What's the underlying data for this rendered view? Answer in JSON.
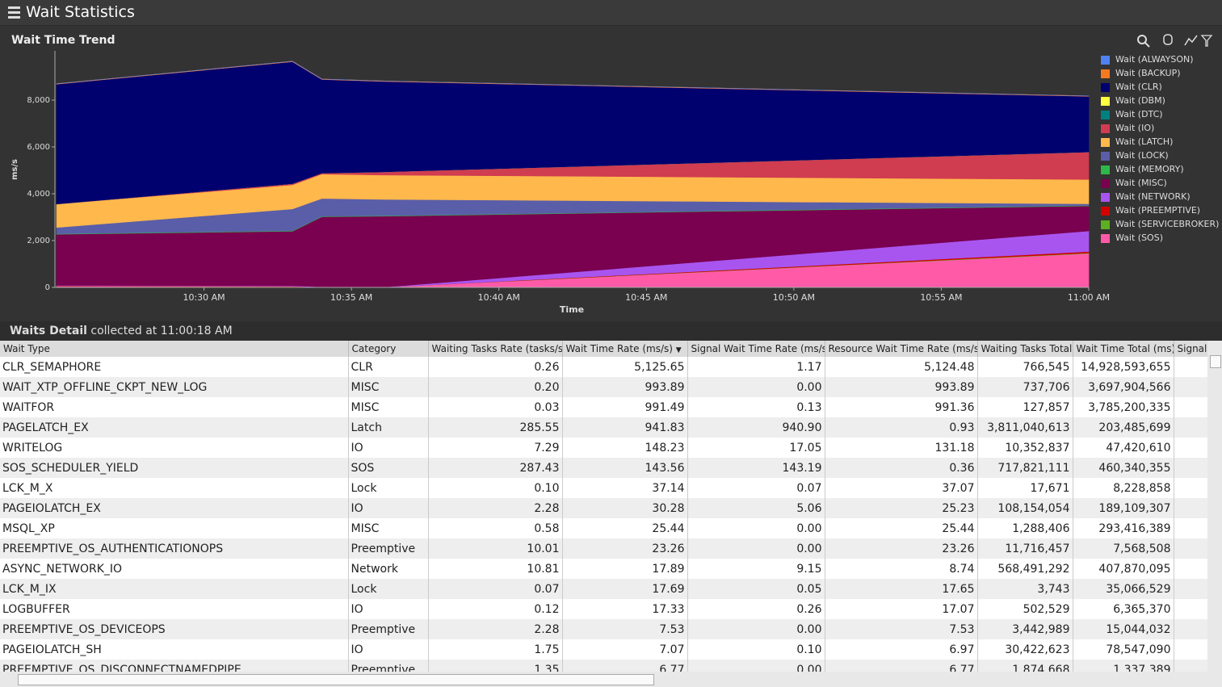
{
  "header": {
    "title": "Wait Statistics"
  },
  "chart_data": {
    "type": "stacked-area",
    "title": "Wait Time Trend",
    "x_label": "Time",
    "y_label": "ms/s",
    "x": [
      "10:25 AM",
      "10:33 AM",
      "10:34 AM",
      "10:36 AM",
      "11:00 AM"
    ],
    "xlim": [
      "10:25 AM",
      "11:00 AM"
    ],
    "xticks": [
      "10:30 AM",
      "10:35 AM",
      "10:40 AM",
      "10:45 AM",
      "10:50 AM",
      "10:55 AM",
      "11:00 AM"
    ],
    "ylim": [
      0,
      10000
    ],
    "yticks": [
      0,
      {
        "value": 2000,
        "label": "2,000"
      },
      {
        "value": 4000,
        "label": "4,000"
      },
      {
        "value": 6000,
        "label": "6,000"
      },
      {
        "value": 8000,
        "label": "8,000"
      }
    ],
    "legend": "right",
    "series": [
      {
        "name": "Wait (ALWAYSON)",
        "color": "#4f81f0",
        "values": [
          0,
          0,
          0,
          0,
          0
        ]
      },
      {
        "name": "Wait (BACKUP)",
        "color": "#f47a20",
        "values": [
          20,
          20,
          20,
          20,
          20
        ]
      },
      {
        "name": "Wait (CLR)",
        "color": "#00006e",
        "values": [
          5120,
          5210,
          4000,
          3870,
          2380
        ]
      },
      {
        "name": "Wait (DBM)",
        "color": "#ffff40",
        "values": [
          0,
          0,
          0,
          0,
          0
        ]
      },
      {
        "name": "Wait (DTC)",
        "color": "#008080",
        "values": [
          0,
          0,
          0,
          0,
          0
        ]
      },
      {
        "name": "Wait (IO)",
        "color": "#d03c50",
        "values": [
          0,
          50,
          40,
          130,
          1170
        ]
      },
      {
        "name": "Wait (LATCH)",
        "color": "#ffb84c",
        "values": [
          1000,
          1030,
          1040,
          1040,
          1040
        ]
      },
      {
        "name": "Wait (LOCK)",
        "color": "#5a5ea8",
        "values": [
          270,
          930,
          760,
          700,
          70
        ]
      },
      {
        "name": "Wait (MEMORY)",
        "color": "#2fb84a",
        "values": [
          20,
          20,
          20,
          20,
          20
        ]
      },
      {
        "name": "Wait (MISC)",
        "color": "#7a0050",
        "values": [
          2180,
          2330,
          3000,
          3040,
          1070
        ]
      },
      {
        "name": "Wait (NETWORK)",
        "color": "#a855f0",
        "values": [
          20,
          20,
          10,
          0,
          880
        ]
      },
      {
        "name": "Wait (PREEMPTIVE)",
        "color": "#d40000",
        "values": [
          20,
          20,
          10,
          0,
          60
        ]
      },
      {
        "name": "Wait (SERVICEBROKER)",
        "color": "#5cb020",
        "values": [
          0,
          0,
          0,
          0,
          20
        ]
      },
      {
        "name": "Wait (SOS)",
        "color": "#ff5aa8",
        "values": [
          50,
          30,
          0,
          0,
          1450
        ]
      }
    ]
  },
  "detail": {
    "title": "Waits Detail",
    "subtitle": "collected at 11:00:18 AM"
  },
  "table": {
    "columns": [
      "Wait Type",
      "Category",
      "Waiting Tasks Rate (tasks/s)",
      "Wait Time Rate (ms/s)",
      "Signal Wait Time Rate (ms/s)",
      "Resource Wait Time Rate (ms/s)",
      "Waiting Tasks Total",
      "Wait Time Total (ms)",
      "Signal Wait Total (ms)"
    ],
    "rows": [
      [
        "CLR_SEMAPHORE",
        "CLR",
        "0.26",
        "5,125.65",
        "1.17",
        "5,124.48",
        "766,545",
        "14,928,593,655"
      ],
      [
        "WAIT_XTP_OFFLINE_CKPT_NEW_LOG",
        "MISC",
        "0.20",
        "993.89",
        "0.00",
        "993.89",
        "737,706",
        "3,697,904,566"
      ],
      [
        "WAITFOR",
        "MISC",
        "0.03",
        "991.49",
        "0.13",
        "991.36",
        "127,857",
        "3,785,200,335"
      ],
      [
        "PAGELATCH_EX",
        "Latch",
        "285.55",
        "941.83",
        "940.90",
        "0.93",
        "3,811,040,613",
        "203,485,699"
      ],
      [
        "WRITELOG",
        "IO",
        "7.29",
        "148.23",
        "17.05",
        "131.18",
        "10,352,837",
        "47,420,610"
      ],
      [
        "SOS_SCHEDULER_YIELD",
        "SOS",
        "287.43",
        "143.56",
        "143.19",
        "0.36",
        "717,821,111",
        "460,340,355"
      ],
      [
        "LCK_M_X",
        "Lock",
        "0.10",
        "37.14",
        "0.07",
        "37.07",
        "17,671",
        "8,228,858"
      ],
      [
        "PAGEIOLATCH_EX",
        "IO",
        "2.28",
        "30.28",
        "5.06",
        "25.23",
        "108,154,054",
        "189,109,307"
      ],
      [
        "MSQL_XP",
        "MISC",
        "0.58",
        "25.44",
        "0.00",
        "25.44",
        "1,288,406",
        "293,416,389"
      ],
      [
        "PREEMPTIVE_OS_AUTHENTICATIONOPS",
        "Preemptive",
        "10.01",
        "23.26",
        "0.00",
        "23.26",
        "11,716,457",
        "7,568,508"
      ],
      [
        "ASYNC_NETWORK_IO",
        "Network",
        "10.81",
        "17.89",
        "9.15",
        "8.74",
        "568,491,292",
        "407,870,095"
      ],
      [
        "LCK_M_IX",
        "Lock",
        "0.07",
        "17.69",
        "0.05",
        "17.65",
        "3,743",
        "35,066,529"
      ],
      [
        "LOGBUFFER",
        "IO",
        "0.12",
        "17.33",
        "0.26",
        "17.07",
        "502,529",
        "6,365,370"
      ],
      [
        "PREEMPTIVE_OS_DEVICEOPS",
        "Preemptive",
        "2.28",
        "7.53",
        "0.00",
        "7.53",
        "3,442,989",
        "15,044,032"
      ],
      [
        "PAGEIOLATCH_SH",
        "IO",
        "1.75",
        "7.07",
        "0.10",
        "6.97",
        "30,422,623",
        "78,547,090"
      ],
      [
        "PREEMPTIVE_OS_DISCONNECTNAMEDPIPE",
        "Preemptive",
        "1.35",
        "6.77",
        "0.00",
        "6.77",
        "1,874,668",
        "1,337,389"
      ]
    ]
  }
}
